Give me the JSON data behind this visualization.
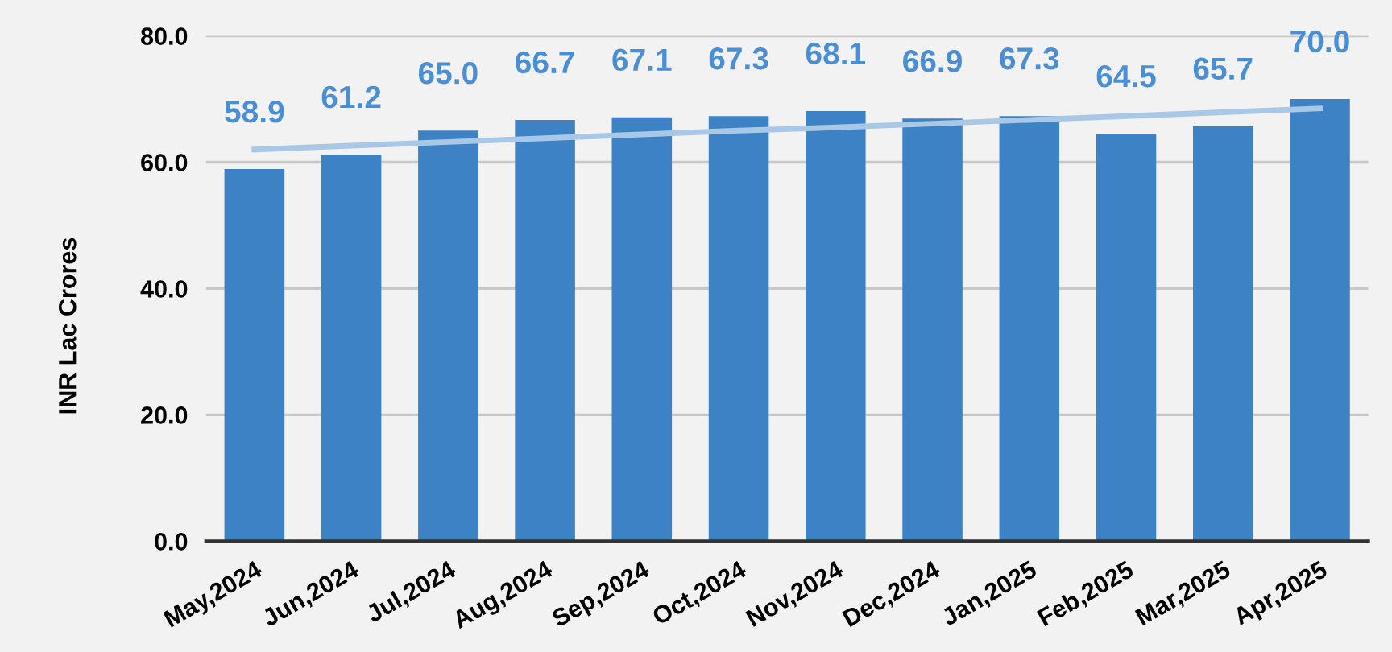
{
  "chart_data": {
    "type": "bar",
    "ylabel": "INR Lac Crores",
    "categories": [
      "May,2024",
      "Jun,2024",
      "Jul,2024",
      "Aug,2024",
      "Sep,2024",
      "Oct,2024",
      "Nov,2024",
      "Dec,2024",
      "Jan,2025",
      "Feb,2025",
      "Mar,2025",
      "Apr,2025"
    ],
    "series": [
      {
        "color": "#3d82c4",
        "values": [
          58.9,
          61.2,
          65.0,
          66.7,
          67.1,
          67.3,
          68.1,
          66.9,
          67.3,
          64.5,
          65.7,
          70.0
        ],
        "value_labels": [
          "58.9",
          "61.2",
          "65.0",
          "66.7",
          "67.1",
          "67.3",
          "68.1",
          "66.9",
          "67.3",
          "64.5",
          "65.7",
          "70.0"
        ]
      },
      {
        "type": "line",
        "color": "#a9c8e6",
        "values": [
          62.0,
          62.6,
          63.2,
          63.8,
          64.4,
          65.0,
          65.5,
          66.1,
          66.7,
          67.3,
          67.9,
          68.5
        ]
      }
    ],
    "ylim": [
      0,
      80
    ],
    "yticks": [
      {
        "value": 0,
        "label": "0.0"
      },
      {
        "value": 20,
        "label": "20.0"
      },
      {
        "value": 40,
        "label": "40.0"
      },
      {
        "value": 60,
        "label": "60.0"
      },
      {
        "value": 80,
        "label": "80.0"
      }
    ],
    "grid": "y"
  }
}
